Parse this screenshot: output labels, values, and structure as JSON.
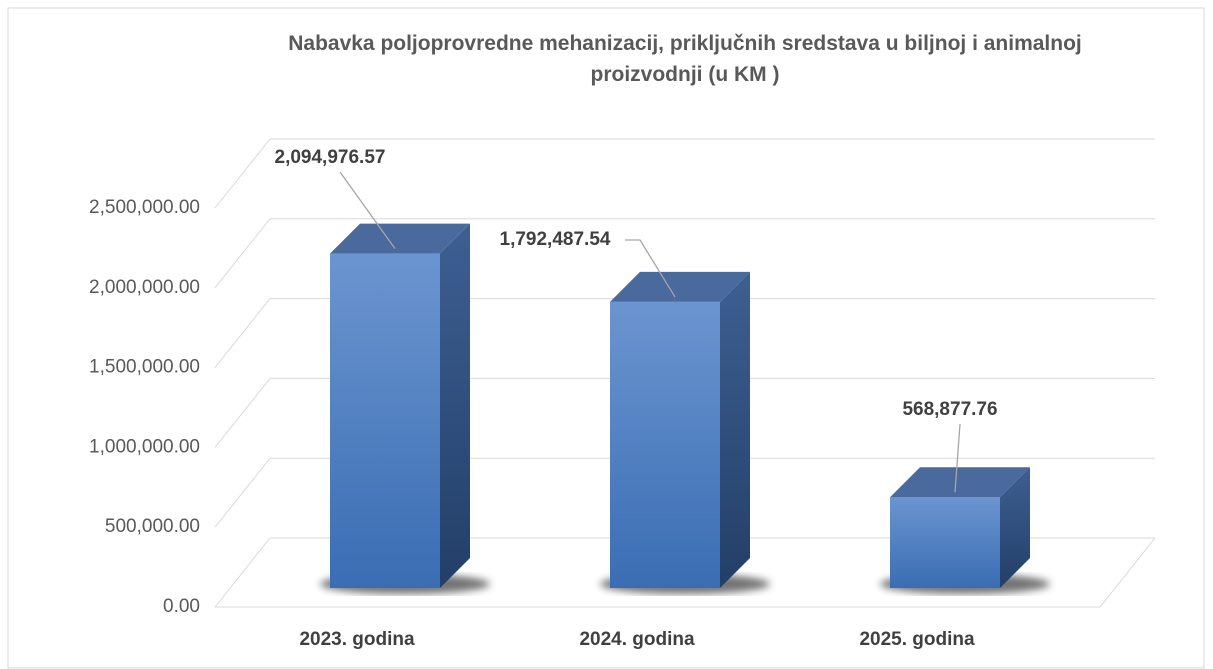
{
  "chart_data": {
    "type": "bar3d",
    "title": "Nabavka poljoprovredne mehanizacij, priključnih sredstava u biljnoj i animalnoj proizvodnji (u KM )",
    "categories": [
      "2023. godina",
      "2024. godina",
      "2025. godina"
    ],
    "values": [
      2094976.57,
      1792487.54,
      568877.76
    ],
    "value_labels": [
      "2,094,976.57",
      "1,792,487.54",
      "568,877.76"
    ],
    "color": "#4a7fc4",
    "ylim": [
      0,
      2500000
    ],
    "yticks": [
      {
        "value": 0,
        "label": "0.00"
      },
      {
        "value": 500000,
        "label": "500,000.00"
      },
      {
        "value": 1000000,
        "label": "1,000,000.00"
      },
      {
        "value": 1500000,
        "label": "1,500,000.00"
      },
      {
        "value": 2000000,
        "label": "2,000,000.00"
      },
      {
        "value": 2500000,
        "label": "2,500,000.00"
      }
    ],
    "grid": true
  }
}
